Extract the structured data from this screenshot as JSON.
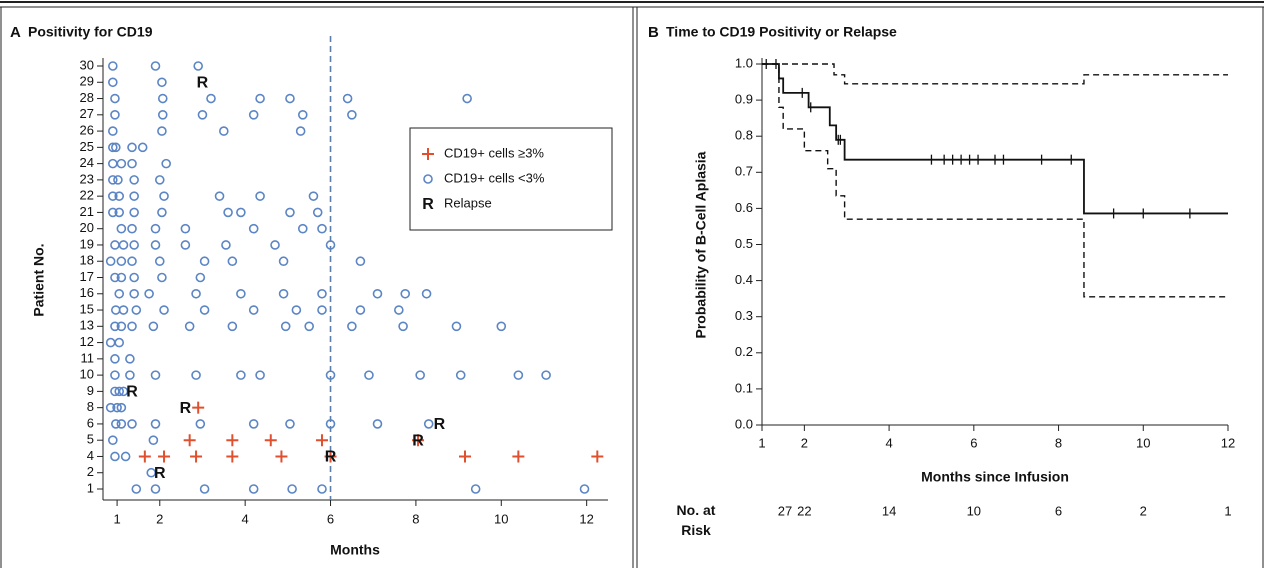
{
  "chart_data": [
    {
      "type": "scatter",
      "panel": "A",
      "title": "Positivity for CD19",
      "xlabel": "Months",
      "ylabel": "Patient No.",
      "categories": [
        "1",
        "2",
        "4",
        "5",
        "6",
        "8",
        "9",
        "10",
        "11",
        "12",
        "13",
        "15",
        "16",
        "17",
        "18",
        "19",
        "20",
        "21",
        "22",
        "23",
        "24",
        "25",
        "26",
        "27",
        "28",
        "29",
        "30"
      ],
      "xlim": [
        0.67,
        12.5
      ],
      "xticks": [
        1,
        2,
        4,
        6,
        8,
        10,
        12
      ],
      "vline": 6,
      "series": [
        {
          "name": "CD19+ cells ≥3%",
          "marker": "+",
          "color": "#e0502e",
          "x": [
            2.9,
            2.7,
            3.7,
            4.6,
            5.8,
            8.05,
            1.65,
            2.1,
            2.85,
            3.7,
            4.85,
            6.0,
            9.15,
            10.4,
            12.25
          ],
          "y": [
            8,
            5,
            5,
            5,
            5,
            5,
            4,
            4,
            4,
            4,
            4,
            4,
            4,
            4,
            4
          ]
        },
        {
          "name": "CD19+ cells <3%",
          "marker": "o",
          "color": "#5b85c5",
          "x": [
            0.9,
            1.9,
            2.9,
            0.9,
            2.05,
            0.95,
            2.07,
            3.2,
            4.35,
            5.05,
            6.4,
            9.2,
            0.95,
            2.07,
            3.0,
            4.2,
            5.35,
            6.5,
            0.9,
            2.05,
            3.5,
            5.3,
            0.9,
            0.97,
            1.35,
            1.6,
            0.9,
            1.1,
            1.35,
            2.15,
            0.9,
            1.02,
            1.4,
            2.0,
            0.9,
            1.05,
            1.4,
            2.1,
            3.4,
            4.35,
            5.6,
            0.9,
            1.05,
            1.4,
            2.05,
            3.6,
            3.9,
            5.05,
            5.7,
            1.1,
            1.35,
            1.9,
            2.6,
            4.2,
            5.35,
            5.8,
            0.95,
            1.15,
            1.4,
            1.9,
            2.6,
            3.55,
            4.7,
            6.0,
            0.85,
            1.1,
            1.35,
            2.0,
            3.05,
            3.7,
            4.9,
            6.7,
            0.95,
            1.1,
            1.4,
            2.05,
            2.95,
            1.05,
            1.4,
            1.75,
            2.85,
            3.9,
            4.9,
            5.8,
            7.1,
            7.75,
            8.25,
            0.97,
            1.15,
            1.45,
            2.1,
            3.05,
            4.2,
            5.2,
            5.8,
            6.7,
            7.6,
            0.95,
            1.1,
            1.35,
            1.85,
            2.7,
            3.7,
            4.95,
            5.5,
            6.5,
            7.7,
            8.95,
            10.0,
            0.85,
            1.05,
            0.95,
            1.3,
            0.95,
            1.3,
            1.9,
            2.85,
            3.9,
            4.35,
            6.0,
            6.9,
            8.1,
            9.05,
            10.4,
            11.05,
            0.95,
            1.05,
            1.15,
            0.85,
            1.0,
            1.1,
            0.97,
            1.1,
            1.35,
            1.9,
            2.95,
            4.2,
            5.05,
            6.0,
            7.1,
            8.3,
            0.9,
            1.85,
            0.95,
            1.2,
            1.8,
            1.45,
            1.9,
            3.05,
            4.2,
            5.1,
            5.8,
            9.4,
            11.95
          ],
          "y": [
            30,
            30,
            30,
            29,
            29,
            28,
            28,
            28,
            28,
            28,
            28,
            28,
            27,
            27,
            27,
            27,
            27,
            27,
            26,
            26,
            26,
            26,
            25,
            25,
            25,
            25,
            24,
            24,
            24,
            24,
            23,
            23,
            23,
            23,
            22,
            22,
            22,
            22,
            22,
            22,
            22,
            21,
            21,
            21,
            21,
            21,
            21,
            21,
            21,
            20,
            20,
            20,
            20,
            20,
            20,
            20,
            19,
            19,
            19,
            19,
            19,
            19,
            19,
            19,
            18,
            18,
            18,
            18,
            18,
            18,
            18,
            18,
            17,
            17,
            17,
            17,
            17,
            16,
            16,
            16,
            16,
            16,
            16,
            16,
            16,
            16,
            16,
            15,
            15,
            15,
            15,
            15,
            15,
            15,
            15,
            15,
            15,
            13,
            13,
            13,
            13,
            13,
            13,
            13,
            13,
            13,
            13,
            13,
            13,
            12,
            12,
            11,
            11,
            10,
            10,
            10,
            10,
            10,
            10,
            10,
            10,
            10,
            10,
            10,
            10,
            9,
            9,
            9,
            8,
            8,
            8,
            6,
            6,
            6,
            6,
            6,
            6,
            6,
            6,
            6,
            6,
            5,
            5,
            4,
            4,
            2,
            1,
            1,
            1,
            1,
            1,
            1,
            1,
            1
          ]
        },
        {
          "name": "Relapse",
          "marker": "R",
          "color": "#111111",
          "x": [
            3.0,
            1.35,
            2.6,
            8.55,
            8.05,
            6.0,
            2.0
          ],
          "y": [
            29,
            9,
            8,
            6,
            5,
            4,
            2
          ]
        }
      ]
    },
    {
      "type": "step",
      "panel": "B",
      "title": "Time to CD19 Positivity or Relapse",
      "xlabel": "Months since Infusion",
      "ylabel": "Probability of B-Cell Aplasia",
      "xlim": [
        1,
        12
      ],
      "xticks": [
        1,
        2,
        4,
        6,
        8,
        10,
        12
      ],
      "ylim": [
        0,
        1
      ],
      "yticks": [
        {
          "value": 0,
          "label": "0.0"
        },
        {
          "value": 0.1,
          "label": "0.1"
        },
        {
          "value": 0.2,
          "label": "0.2"
        },
        {
          "value": 0.3,
          "label": "0.3"
        },
        {
          "value": 0.4,
          "label": "0.4"
        },
        {
          "value": 0.5,
          "label": "0.5"
        },
        {
          "value": 0.6,
          "label": "0.6"
        },
        {
          "value": 0.7,
          "label": "0.7"
        },
        {
          "value": 0.8,
          "label": "0.8"
        },
        {
          "value": 0.9,
          "label": "0.9"
        },
        {
          "value": 1,
          "label": "1.0"
        }
      ],
      "series": [
        {
          "style": "solid",
          "color": "#111111",
          "x": [
            1,
            1.4,
            1.5,
            2.1,
            2.6,
            2.75,
            2.95,
            8.6,
            12
          ],
          "values": [
            1.0,
            0.96,
            0.92,
            0.88,
            0.83,
            0.79,
            0.735,
            0.586,
            0.586
          ],
          "censored": {
            "x": [
              1.1,
              1.33,
              1.95,
              2.15,
              2.8,
              2.85,
              5.0,
              5.3,
              5.5,
              5.7,
              5.9,
              6.1,
              6.5,
              6.7,
              7.6,
              8.3,
              9.3,
              10.0,
              11.1
            ],
            "values": [
              1.0,
              1.0,
              0.92,
              0.88,
              0.79,
              0.79,
              0.735,
              0.735,
              0.735,
              0.735,
              0.735,
              0.735,
              0.735,
              0.735,
              0.735,
              0.735,
              0.586,
              0.586,
              0.586
            ]
          }
        },
        {
          "style": "dashed",
          "color": "#111111",
          "x": [
            1,
            2.7,
            2.95,
            8.6,
            12
          ],
          "values": [
            1.0,
            0.97,
            0.945,
            0.97,
            0.97
          ]
        },
        {
          "style": "dashed",
          "color": "#111111",
          "x": [
            1,
            1.4,
            1.5,
            2.0,
            2.55,
            2.75,
            2.95,
            8.6,
            12
          ],
          "values": [
            1.0,
            0.88,
            0.82,
            0.76,
            0.71,
            0.635,
            0.57,
            0.355,
            0.355
          ]
        }
      ],
      "at_risk": {
        "label": "No. at Risk",
        "values": [
          27,
          22,
          14,
          10,
          6,
          2,
          1
        ]
      }
    }
  ]
}
